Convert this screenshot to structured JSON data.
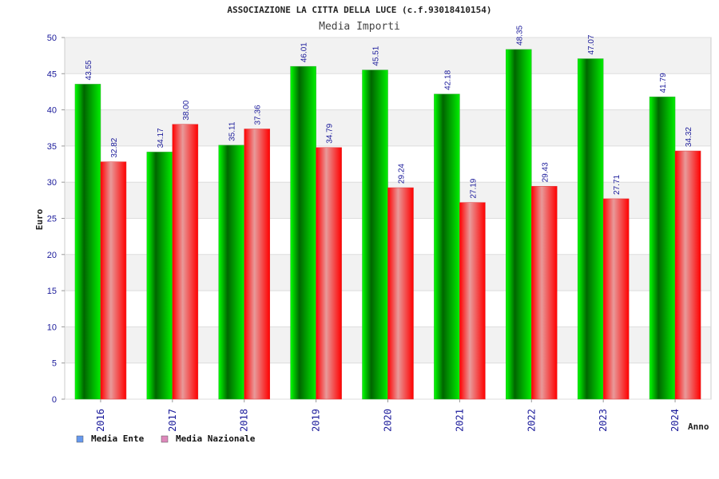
{
  "chart_data": {
    "type": "bar",
    "title": "ASSOCIAZIONE LA CITTA DELLA LUCE (c.f.93018410154)",
    "subtitle": "Media Importi",
    "xlabel": "Anno",
    "ylabel": "Euro",
    "ylim": [
      0,
      50
    ],
    "yticks": [
      0,
      5,
      10,
      15,
      20,
      25,
      30,
      35,
      40,
      45,
      50
    ],
    "grid": true,
    "legend_position": "bottom-left",
    "categories": [
      "2016",
      "2017",
      "2018",
      "2019",
      "2020",
      "2021",
      "2022",
      "2023",
      "2024"
    ],
    "series": [
      {
        "name": "Media Ente",
        "color": "#00cc00",
        "legend_color": "#6699ee",
        "values": [
          43.55,
          34.17,
          35.11,
          46.01,
          45.51,
          42.18,
          48.35,
          47.07,
          41.79
        ],
        "labels": [
          "43.55",
          "34.17",
          "35.11",
          "46.01",
          "45.51",
          "42.18",
          "48.35",
          "47.07",
          "41.79"
        ]
      },
      {
        "name": "Media Nazionale",
        "color": "#ff1a1a",
        "legend_color": "#dd88bb",
        "values": [
          32.82,
          38.0,
          37.36,
          34.79,
          29.24,
          27.19,
          29.43,
          27.71,
          34.32
        ],
        "labels": [
          "32.82",
          "38.00",
          "37.36",
          "34.79",
          "29.24",
          "27.19",
          "29.43",
          "27.71",
          "34.32"
        ]
      }
    ]
  }
}
